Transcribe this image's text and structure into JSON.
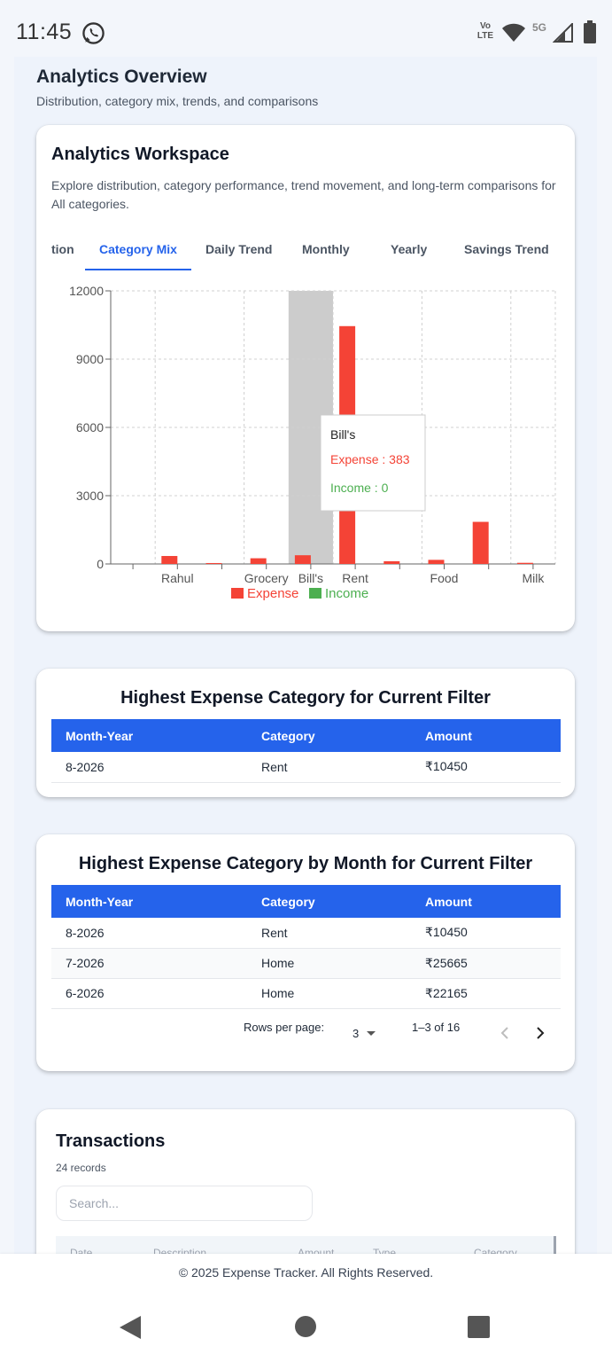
{
  "status_bar": {
    "time": "11:45",
    "volte_line1": "Vo",
    "volte_line2": "LTE",
    "network": "5G"
  },
  "overview": {
    "title": "Analytics Overview",
    "subtitle": "Distribution, category mix, trends, and comparisons"
  },
  "workspace": {
    "title": "Analytics Workspace",
    "description": "Explore distribution, category performance, trend movement, and long-term comparisons for All categories.",
    "tabs": [
      "tion",
      "Category Mix",
      "Daily Trend",
      "Monthly",
      "Yearly",
      "Savings Trend"
    ],
    "active_tab": "Category Mix"
  },
  "chart_data": {
    "type": "bar",
    "categories": [
      "",
      "Rahul",
      "",
      "Grocery",
      "Bill's",
      "Rent",
      "",
      "Food",
      "",
      "Milk"
    ],
    "series": [
      {
        "name": "Expense",
        "values": [
          0,
          350,
          40,
          250,
          383,
          10450,
          120,
          180,
          1850,
          50
        ],
        "color": "#f44336"
      },
      {
        "name": "Income",
        "values": [
          0,
          0,
          0,
          0,
          0,
          0,
          0,
          0,
          0,
          0
        ],
        "color": "#4caf50"
      }
    ],
    "y_ticks": [
      "0",
      "3000",
      "6000",
      "9000",
      "12000"
    ],
    "ylim": [
      0,
      12000
    ],
    "grid": true,
    "legend": "bottom",
    "highlighted_category": "Bill's",
    "tooltip": {
      "title": "Bill's",
      "expense_label": "Expense : 383",
      "income_label": "Income : 0"
    }
  },
  "highest_expense": {
    "title": "Highest Expense Category for Current Filter",
    "columns": [
      "Month-Year",
      "Category",
      "Amount"
    ],
    "rows": [
      [
        "8-2026",
        "Rent",
        "₹10450"
      ]
    ]
  },
  "highest_by_month": {
    "title": "Highest Expense Category by Month for Current Filter",
    "columns": [
      "Month-Year",
      "Category",
      "Amount"
    ],
    "rows": [
      [
        "8-2026",
        "Rent",
        "₹10450"
      ],
      [
        "7-2026",
        "Home",
        "₹25665"
      ],
      [
        "6-2026",
        "Home",
        "₹22165"
      ]
    ],
    "pagination": {
      "rows_per_page_label": "Rows per page:",
      "rows_per_page": "3",
      "range": "1–3 of 16"
    }
  },
  "transactions": {
    "title": "Transactions",
    "count": "24 records",
    "search_placeholder": "Search...",
    "columns": [
      "Date",
      "Description",
      "Amount",
      "Type",
      "Category"
    ]
  },
  "footer": {
    "text": "© 2025 Expense Tracker. All Rights Reserved."
  }
}
